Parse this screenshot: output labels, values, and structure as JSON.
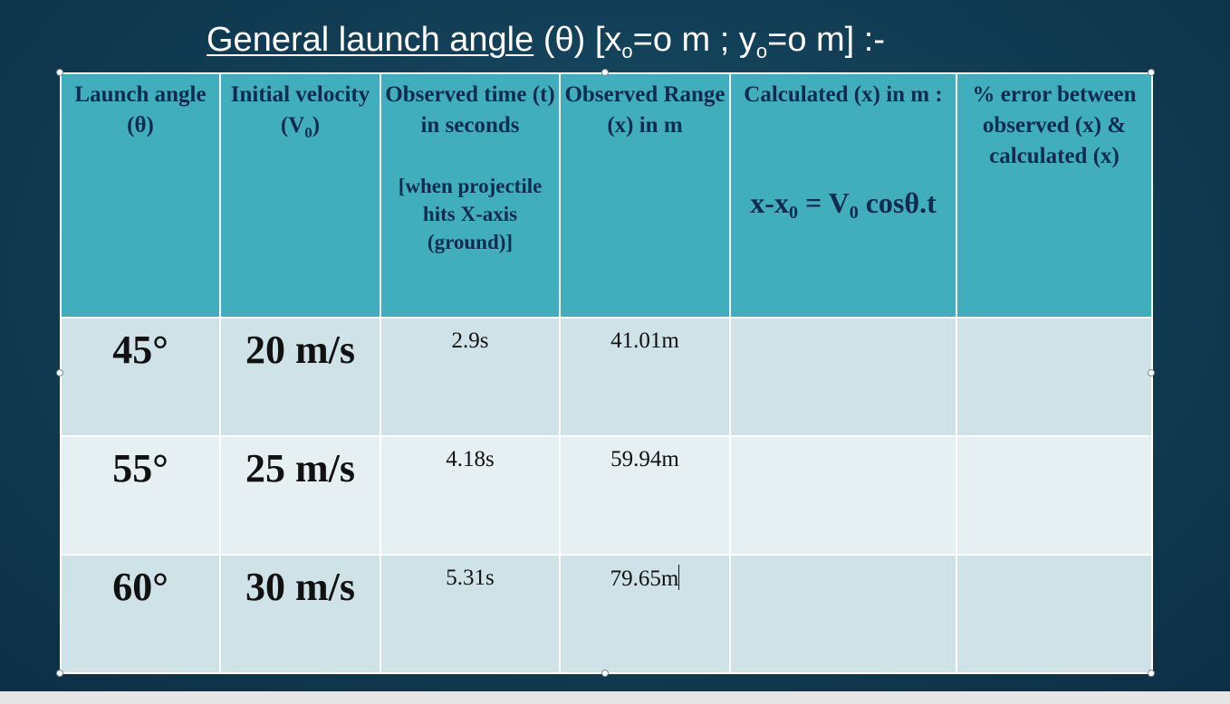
{
  "title": {
    "underlined": "General launch angle",
    "theta": "(θ)",
    "x_part": "[x",
    "x_sub": "o",
    "x_value": "=o m ; y",
    "y_sub": "o",
    "y_value": "=o m]",
    "suffix": ":-"
  },
  "table": {
    "headers": {
      "angle": "Launch angle (θ)",
      "velocity": "Initial velocity (V",
      "velocity_sub": "0",
      "velocity_close": ")",
      "time": "Observed time (t) in seconds",
      "time_note": "[when projectile hits X-axis (ground)]",
      "range": "Observed Range (x) in m",
      "calc": "Calculated (x) in m :",
      "formula_a": "x-x",
      "formula_a_sub": "0",
      "formula_b": " = V",
      "formula_b_sub": "0",
      "formula_c": " cosθ.t",
      "error": "% error between observed (x) & calculated (x)"
    },
    "rows": [
      {
        "angle": "45°",
        "velocity": "20 m/s",
        "time": "2.9s",
        "range": "41.01m",
        "calc": "",
        "error": ""
      },
      {
        "angle": "55°",
        "velocity": "25 m/s",
        "time": "4.18s",
        "range": "59.94m",
        "calc": "",
        "error": ""
      },
      {
        "angle": "60°",
        "velocity": "30 m/s",
        "time": "5.31s",
        "range": "79.65m",
        "calc": "",
        "error": ""
      }
    ]
  },
  "colors": {
    "header_bg": "#41aebe",
    "header_text": "#0f2b4f",
    "row_dark": "#cfe2e8",
    "row_light": "#e6f0f3",
    "slide_bg": "#123f57"
  }
}
